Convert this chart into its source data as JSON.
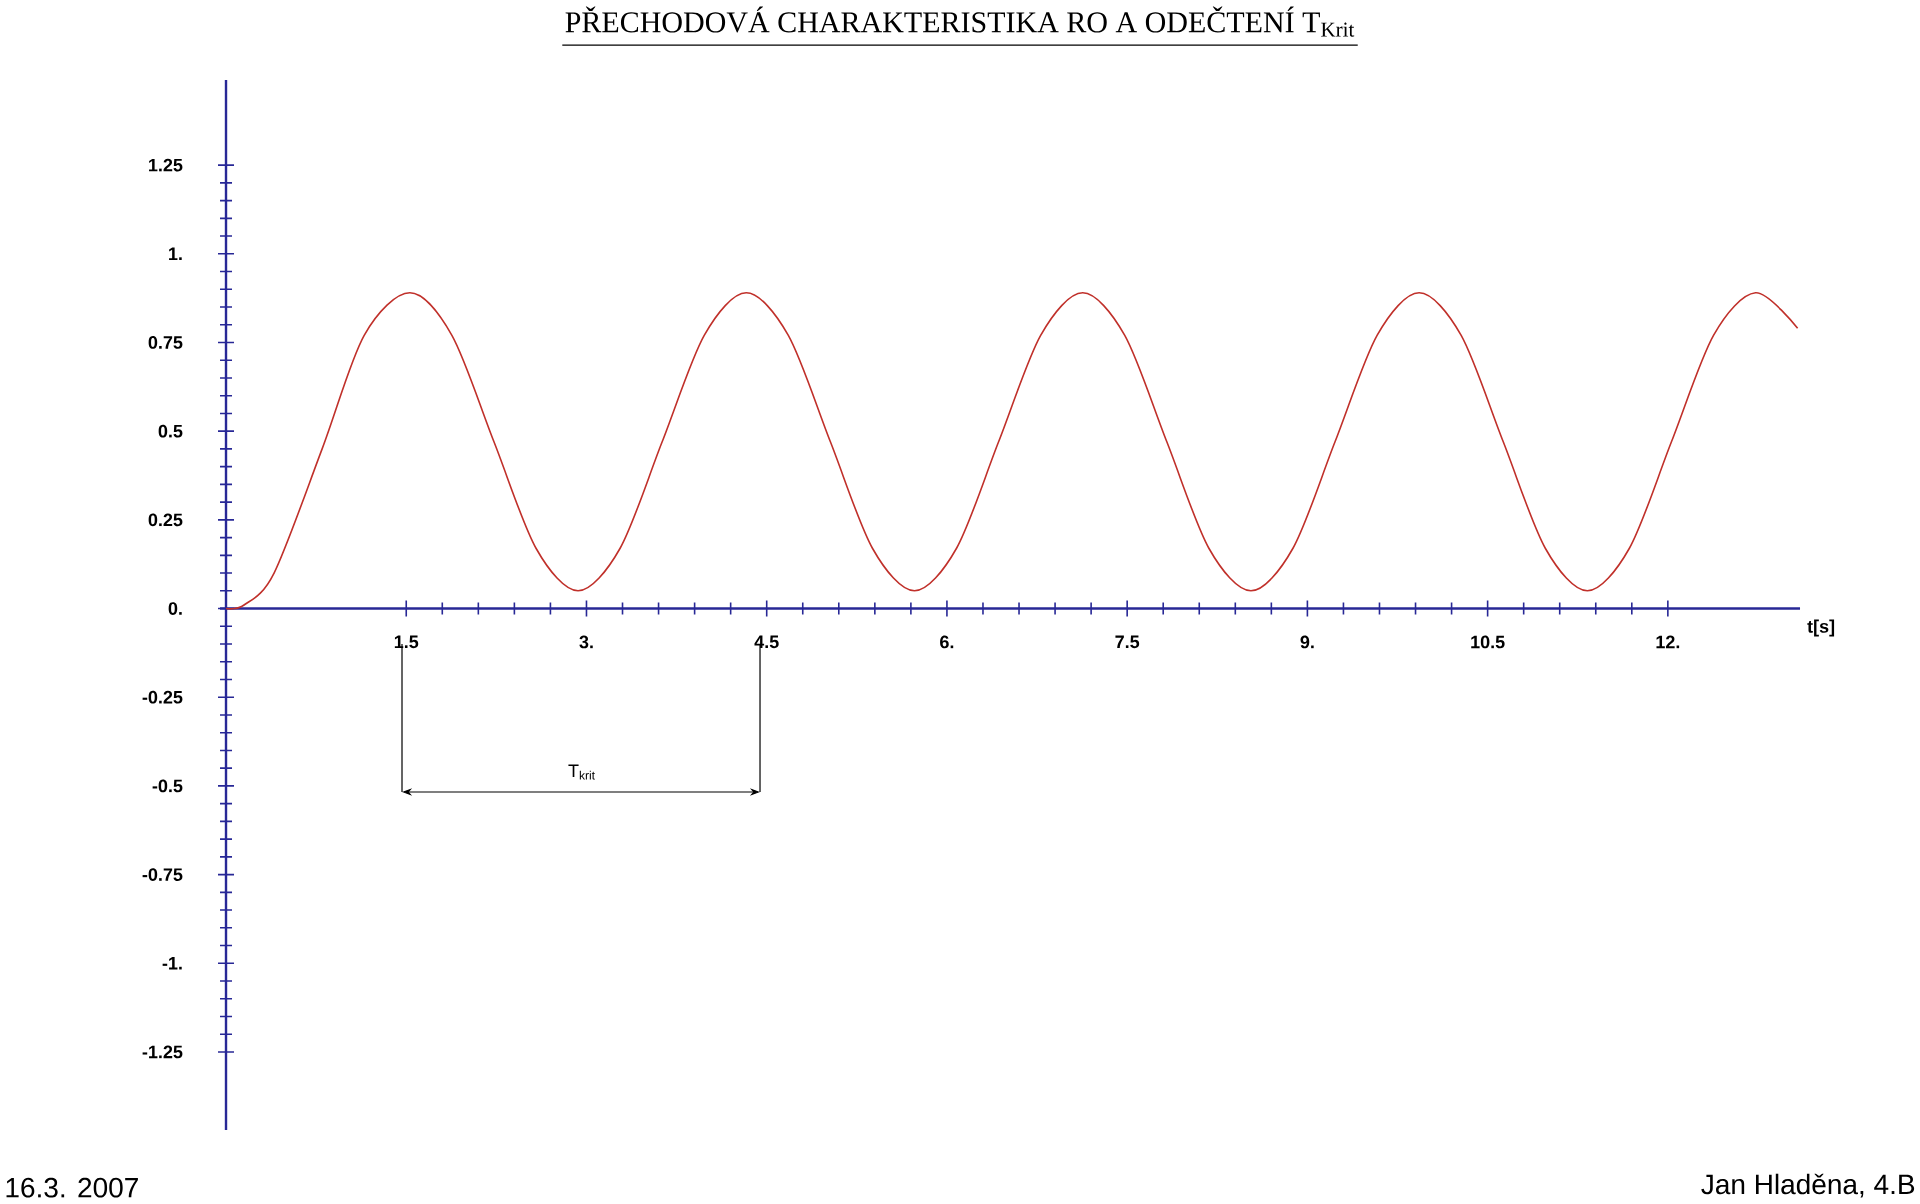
{
  "chart_data": {
    "type": "line",
    "title": "PŘECHODOVÁ CHARAKTERISTIKA RO A ODEČTENÍ T$_{Krit}$",
    "xlabel": "t[s]",
    "x": [
      0,
      0.15,
      0.4,
      0.8,
      1.15,
      1.53,
      1.88,
      2.23,
      2.58,
      2.93,
      3.28,
      3.63,
      3.98,
      4.33,
      4.68,
      5.03,
      5.38,
      5.73,
      6.08,
      6.43,
      6.78,
      7.13,
      7.48,
      7.83,
      8.18,
      8.53,
      8.88,
      9.23,
      9.58,
      9.93,
      10.28,
      10.63,
      10.98,
      11.33,
      11.68,
      12.03,
      12.38,
      12.73,
      13.08
    ],
    "series": [
      {
        "color": "#c0302a",
        "values": [
          0,
          0.01,
          0.1,
          0.45,
          0.77,
          0.89,
          0.77,
          0.47,
          0.17,
          0.05,
          0.17,
          0.47,
          0.77,
          0.89,
          0.77,
          0.47,
          0.17,
          0.05,
          0.17,
          0.47,
          0.77,
          0.89,
          0.77,
          0.47,
          0.17,
          0.05,
          0.17,
          0.47,
          0.77,
          0.89,
          0.77,
          0.47,
          0.17,
          0.05,
          0.17,
          0.47,
          0.77,
          0.89,
          0.79
        ]
      }
    ],
    "xlim": [
      -0.05,
      13.1
    ],
    "ylim": [
      -1.47,
      1.49
    ],
    "xticks": [
      {
        "value": 1.5,
        "label": "1.5"
      },
      {
        "value": 3,
        "label": "3."
      },
      {
        "value": 4.5,
        "label": "4.5"
      },
      {
        "value": 6,
        "label": "6."
      },
      {
        "value": 7.5,
        "label": "7.5"
      },
      {
        "value": 9,
        "label": "9."
      },
      {
        "value": 10.5,
        "label": "10.5"
      },
      {
        "value": 12,
        "label": "12."
      }
    ],
    "yticks": [
      {
        "value": -1.25,
        "label": "-1.25"
      },
      {
        "value": -1,
        "label": "-1."
      },
      {
        "value": -0.75,
        "label": "-0.75"
      },
      {
        "value": -0.5,
        "label": "-0.5"
      },
      {
        "value": -0.25,
        "label": "-0.25"
      },
      {
        "value": 0,
        "label": "0."
      },
      {
        "value": 0.25,
        "label": "0.25"
      },
      {
        "value": 0.5,
        "label": "0.5"
      },
      {
        "value": 0.75,
        "label": "0.75"
      },
      {
        "value": 1,
        "label": "1."
      },
      {
        "value": 1.25,
        "label": "1.25"
      }
    ],
    "grid": false,
    "marker": "none",
    "line_style": "solid",
    "annotations": [
      "T$_{krit}$",
      "16.3. 2007",
      "Jan Hladěna, 4.B"
    ]
  }
}
